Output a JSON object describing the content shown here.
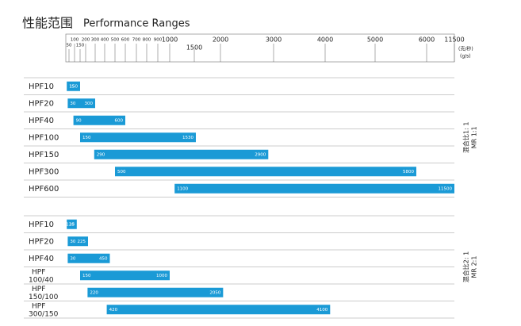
{
  "chart_data": {
    "type": "range_bar",
    "title": "性能范围",
    "subtitle": "Performance Ranges",
    "unit_labels": [
      "(克/秒)",
      "(g/s)"
    ],
    "xlim": [
      0,
      11500
    ],
    "xticks": [
      50,
      100,
      150,
      200,
      300,
      400,
      500,
      600,
      700,
      800,
      900,
      1000,
      1500,
      2000,
      3000,
      4000,
      5000,
      6000,
      11500
    ],
    "color": "#1a9ad6",
    "groups": [
      {
        "label": [
          "混合比1: 1",
          "MR 1:1"
        ],
        "categories": [
          "HPF10",
          "HPF20",
          "HPF40",
          "HPF100",
          "HPF150",
          "HPF300",
          "HPF600"
        ],
        "low": [
          15,
          30,
          90,
          150,
          290,
          500,
          1100
        ],
        "high": [
          150,
          300,
          600,
          1530,
          2900,
          5800,
          11500
        ]
      },
      {
        "label": [
          "混合比2: 1",
          "MR 2:1"
        ],
        "categories": [
          "HPF10",
          "HPF20",
          "HPF40",
          "HPF\n100/40",
          "HPF\n150/100",
          "HPF\n300/150"
        ],
        "low": [
          15,
          30,
          30,
          150,
          220,
          420
        ],
        "high": [
          120,
          225,
          450,
          1000,
          2050,
          4100
        ]
      }
    ]
  }
}
